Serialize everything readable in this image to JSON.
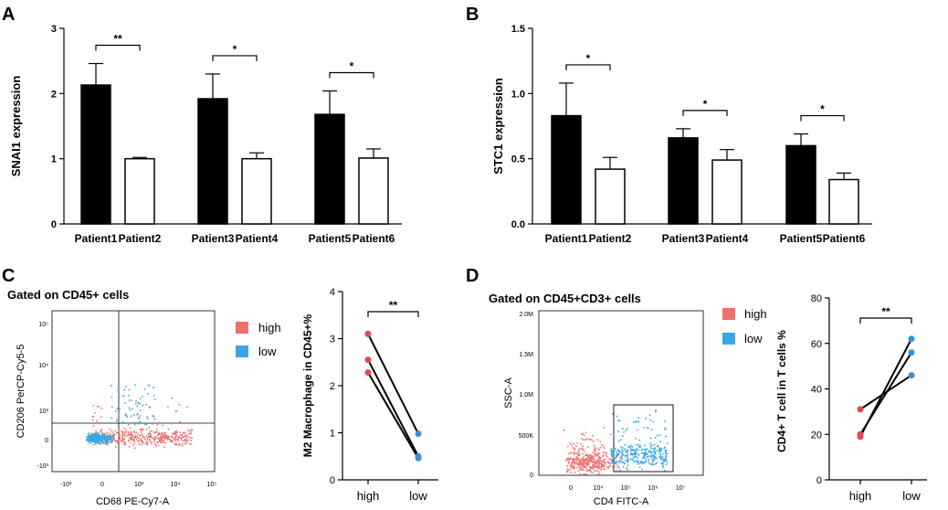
{
  "chart_data": [
    {
      "panel": "A",
      "type": "bar",
      "ylabel": "SNAI1 expression",
      "ylim": [
        0,
        3
      ],
      "yticks": [
        "0",
        "1",
        "2",
        "3"
      ],
      "categories": [
        "Patient1",
        "Patient2",
        "Patient3",
        "Patient4",
        "Patient5",
        "Patient6"
      ],
      "values": [
        2.13,
        1.0,
        1.92,
        1.0,
        1.68,
        1.01
      ],
      "errors": [
        0.33,
        0.02,
        0.38,
        0.09,
        0.36,
        0.14
      ],
      "fills": [
        "#000000",
        "#ffffff",
        "#000000",
        "#ffffff",
        "#000000",
        "#ffffff"
      ],
      "significance": [
        {
          "pair": [
            0,
            1
          ],
          "label": "**"
        },
        {
          "pair": [
            2,
            3
          ],
          "label": "*"
        },
        {
          "pair": [
            4,
            5
          ],
          "label": "*"
        }
      ]
    },
    {
      "panel": "B",
      "type": "bar",
      "ylabel": "STC1 expression",
      "ylim": [
        0,
        1.5
      ],
      "yticks": [
        "0.0",
        "0.5",
        "1.0",
        "1.5"
      ],
      "categories": [
        "Patient1",
        "Patient2",
        "Patient3",
        "Patient4",
        "Patient5",
        "Patient6"
      ],
      "values": [
        0.83,
        0.42,
        0.66,
        0.49,
        0.6,
        0.34
      ],
      "errors": [
        0.25,
        0.09,
        0.07,
        0.08,
        0.09,
        0.05
      ],
      "fills": [
        "#000000",
        "#ffffff",
        "#000000",
        "#ffffff",
        "#000000",
        "#ffffff"
      ],
      "significance": [
        {
          "pair": [
            0,
            1
          ],
          "label": "*"
        },
        {
          "pair": [
            2,
            3
          ],
          "label": "*"
        },
        {
          "pair": [
            4,
            5
          ],
          "label": "*"
        }
      ]
    },
    {
      "panel": "C",
      "type": "scatter",
      "title": "Gated on CD45+ cells",
      "xlabel": "CD68 PE-Cy7-A",
      "ylabel": "CD206 PerCP-Cy5-5",
      "xticks": [
        "-10³",
        "0",
        "10³",
        "10⁴",
        "10⁵"
      ],
      "yticks": [
        "10⁵",
        "10⁴",
        "10³",
        "0",
        "-10³"
      ],
      "legend": [
        {
          "name": "high",
          "color": "#f07070"
        },
        {
          "name": "low",
          "color": "#3aa8e0"
        }
      ]
    },
    {
      "panel": "C",
      "type": "line",
      "ylabel": "M2 Macrophage in CD45+%",
      "categories": [
        "high",
        "low"
      ],
      "ylim": [
        0,
        4
      ],
      "yticks": [
        "0",
        "1",
        "2",
        "3",
        "4"
      ],
      "pairs": [
        [
          3.1,
          0.98
        ],
        [
          2.55,
          0.5
        ],
        [
          2.28,
          0.46
        ]
      ],
      "colors": {
        "high": "#e8474f",
        "low": "#3b8fd8"
      },
      "significance": "**"
    },
    {
      "panel": "D",
      "type": "scatter",
      "title": "Gated on CD45+CD3+ cells",
      "xlabel": "CD4 FITC-A",
      "ylabel": "SSC-A",
      "xticks": [
        "0",
        "10⁴",
        "10⁵",
        "10⁶",
        "10⁷"
      ],
      "yticks": [
        "2.0M",
        "1.5M",
        "1.0M",
        "500K",
        "0"
      ],
      "legend": [
        {
          "name": "high",
          "color": "#f07070"
        },
        {
          "name": "low",
          "color": "#3aa8e0"
        }
      ]
    },
    {
      "panel": "D",
      "type": "line",
      "ylabel": "CD4+ T cell in T cells %",
      "categories": [
        "high",
        "low"
      ],
      "ylim": [
        0,
        80
      ],
      "yticks": [
        "0",
        "20",
        "40",
        "60",
        "80"
      ],
      "pairs": [
        [
          31,
          46
        ],
        [
          20,
          56
        ],
        [
          19,
          62
        ]
      ],
      "colors": {
        "high": "#e8474f",
        "low": "#3b8fd8"
      },
      "significance": "**"
    }
  ],
  "panel_letters": [
    "A",
    "B",
    "C",
    "D"
  ]
}
